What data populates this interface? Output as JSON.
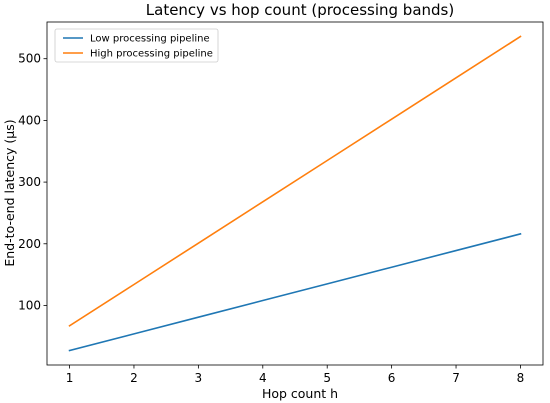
{
  "chart_data": {
    "type": "line",
    "title": "Latency vs hop count (processing bands)",
    "xlabel": "Hop count h",
    "ylabel": "End-to-end latency (µs)",
    "x": [
      1,
      2,
      3,
      4,
      5,
      6,
      7,
      8
    ],
    "series": [
      {
        "name": "Low processing pipeline",
        "color": "#1f77b4",
        "values": [
          27,
          54,
          81,
          108,
          135,
          162,
          189,
          216
        ]
      },
      {
        "name": "High processing pipeline",
        "color": "#ff7f0e",
        "values": [
          67,
          134,
          201,
          268,
          335,
          402,
          469,
          536
        ]
      }
    ],
    "xlim": [
      0.65,
      8.35
    ],
    "ylim": [
      3.5,
      559.5
    ],
    "xticks": [
      1,
      2,
      3,
      4,
      5,
      6,
      7,
      8
    ],
    "yticks": [
      100,
      200,
      300,
      400,
      500
    ],
    "grid": false,
    "legend_position": "top-left"
  }
}
